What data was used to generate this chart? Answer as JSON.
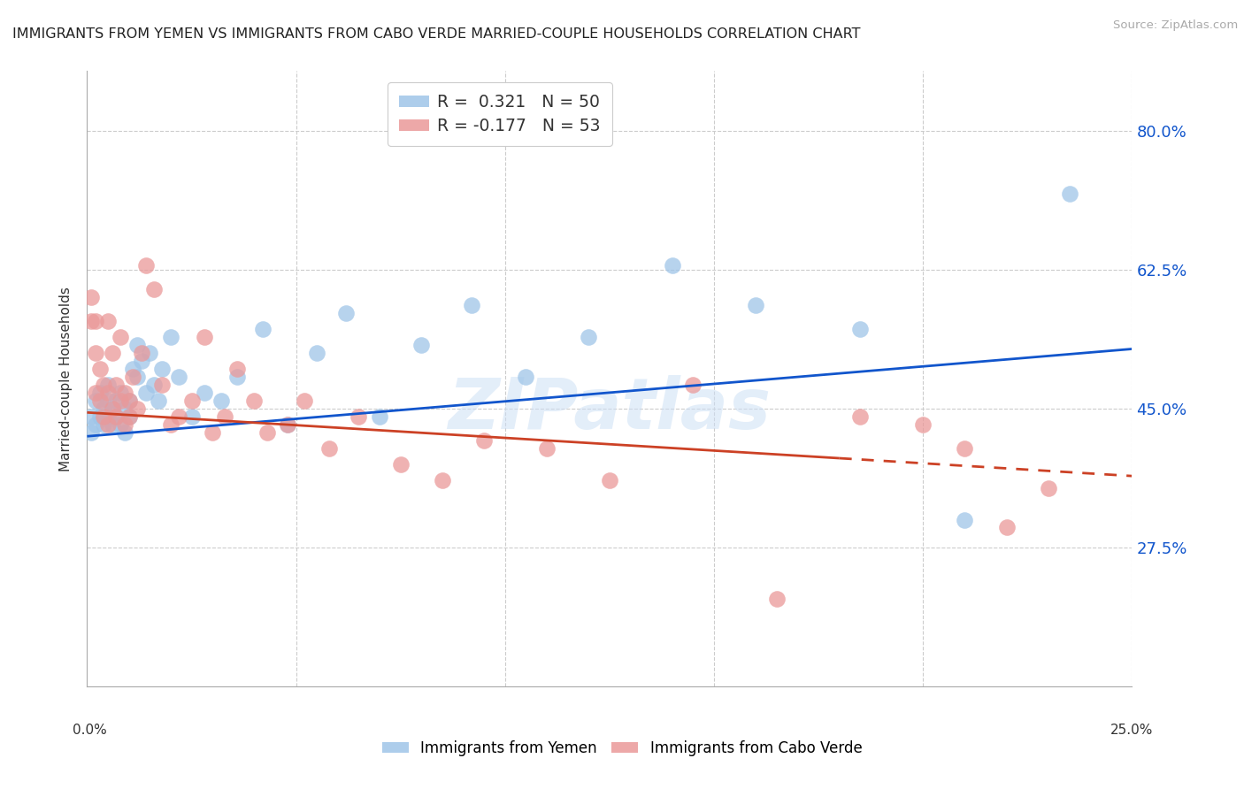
{
  "title": "IMMIGRANTS FROM YEMEN VS IMMIGRANTS FROM CABO VERDE MARRIED-COUPLE HOUSEHOLDS CORRELATION CHART",
  "source": "Source: ZipAtlas.com",
  "ylabel": "Married-couple Households",
  "ylim": [
    0.1,
    0.875
  ],
  "xlim": [
    0.0,
    0.25
  ],
  "yticks": [
    0.275,
    0.45,
    0.625,
    0.8
  ],
  "ytick_labels": [
    "27.5%",
    "45.0%",
    "62.5%",
    "80.0%"
  ],
  "color_blue": "#9fc5e8",
  "color_pink": "#ea9999",
  "line_color_blue": "#1155cc",
  "line_color_pink": "#cc4125",
  "background_color": "#ffffff",
  "watermark": "ZIPatlas",
  "yemen_x": [
    0.001,
    0.001,
    0.002,
    0.002,
    0.003,
    0.003,
    0.004,
    0.004,
    0.005,
    0.005,
    0.005,
    0.006,
    0.006,
    0.007,
    0.007,
    0.008,
    0.008,
    0.009,
    0.009,
    0.01,
    0.01,
    0.011,
    0.012,
    0.012,
    0.013,
    0.014,
    0.015,
    0.016,
    0.017,
    0.018,
    0.02,
    0.022,
    0.025,
    0.028,
    0.032,
    0.036,
    0.042,
    0.048,
    0.055,
    0.062,
    0.07,
    0.08,
    0.092,
    0.105,
    0.12,
    0.14,
    0.16,
    0.185,
    0.21,
    0.235
  ],
  "yemen_y": [
    0.42,
    0.44,
    0.43,
    0.46,
    0.44,
    0.47,
    0.45,
    0.43,
    0.44,
    0.46,
    0.48,
    0.43,
    0.45,
    0.44,
    0.46,
    0.43,
    0.47,
    0.45,
    0.42,
    0.44,
    0.46,
    0.5,
    0.53,
    0.49,
    0.51,
    0.47,
    0.52,
    0.48,
    0.46,
    0.5,
    0.54,
    0.49,
    0.44,
    0.47,
    0.46,
    0.49,
    0.55,
    0.43,
    0.52,
    0.57,
    0.44,
    0.53,
    0.58,
    0.49,
    0.54,
    0.63,
    0.58,
    0.55,
    0.31,
    0.72
  ],
  "cabo_x": [
    0.001,
    0.001,
    0.002,
    0.002,
    0.002,
    0.003,
    0.003,
    0.004,
    0.004,
    0.005,
    0.005,
    0.005,
    0.006,
    0.006,
    0.007,
    0.007,
    0.008,
    0.008,
    0.009,
    0.009,
    0.01,
    0.01,
    0.011,
    0.012,
    0.013,
    0.014,
    0.016,
    0.018,
    0.02,
    0.022,
    0.025,
    0.028,
    0.03,
    0.033,
    0.036,
    0.04,
    0.043,
    0.048,
    0.052,
    0.058,
    0.065,
    0.075,
    0.085,
    0.095,
    0.11,
    0.125,
    0.145,
    0.165,
    0.185,
    0.2,
    0.21,
    0.22,
    0.23
  ],
  "cabo_y": [
    0.59,
    0.56,
    0.47,
    0.52,
    0.56,
    0.46,
    0.5,
    0.48,
    0.44,
    0.43,
    0.47,
    0.56,
    0.45,
    0.52,
    0.44,
    0.48,
    0.46,
    0.54,
    0.43,
    0.47,
    0.44,
    0.46,
    0.49,
    0.45,
    0.52,
    0.63,
    0.6,
    0.48,
    0.43,
    0.44,
    0.46,
    0.54,
    0.42,
    0.44,
    0.5,
    0.46,
    0.42,
    0.43,
    0.46,
    0.4,
    0.44,
    0.38,
    0.36,
    0.41,
    0.4,
    0.36,
    0.48,
    0.21,
    0.44,
    0.43,
    0.4,
    0.3,
    0.35
  ],
  "yemen_line_x": [
    0.0,
    0.25
  ],
  "cabo_line_x": [
    0.0,
    0.25
  ],
  "yemen_line_y": [
    0.415,
    0.525
  ],
  "cabo_line_y": [
    0.445,
    0.365
  ]
}
